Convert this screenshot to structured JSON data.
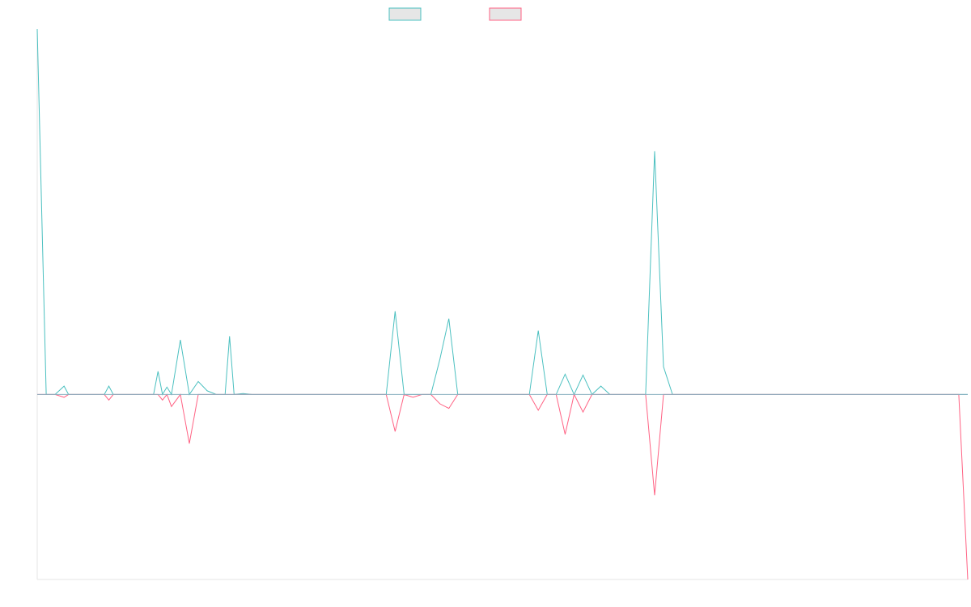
{
  "chart_data": {
    "type": "line",
    "title": "",
    "xlabel": "",
    "ylabel": "",
    "grid": false,
    "legend_position": "top-center",
    "x": [
      0,
      2,
      4,
      6,
      7,
      9,
      11,
      12,
      13,
      14,
      15,
      16,
      17,
      18,
      19,
      20,
      21,
      22,
      24,
      26,
      27,
      28,
      29,
      30,
      32,
      34,
      36,
      38,
      40,
      42,
      43,
      44,
      46,
      48,
      50,
      52,
      54,
      56,
      58,
      60,
      62,
      64,
      66,
      68,
      70,
      72,
      74,
      76,
      78,
      80,
      82,
      84,
      86,
      88,
      90,
      92,
      94,
      96,
      98,
      100,
      102,
      104,
      106,
      108,
      110,
      112,
      114,
      116,
      118,
      120,
      122,
      124,
      126,
      128,
      130,
      132,
      134,
      136,
      138,
      140,
      142,
      144,
      146,
      148,
      150,
      152,
      154,
      156,
      158,
      160,
      162,
      164,
      166,
      168,
      170,
      172,
      174,
      176,
      178,
      180,
      182,
      184,
      186,
      188,
      190,
      192,
      194,
      196,
      198,
      200,
      202,
      204,
      206,
      208
    ],
    "series": [
      {
        "color": "#4bc0c0",
        "fill": "rgba(0,0,0,0.10)",
        "values": [
          395,
          0,
          0,
          9,
          0,
          0,
          0,
          0,
          0,
          0,
          0,
          9,
          0,
          0,
          0,
          0,
          0,
          0,
          0,
          0,
          25,
          0,
          8,
          0,
          59,
          0,
          14,
          4,
          0,
          0,
          63,
          0,
          1,
          0,
          0,
          0,
          0,
          0,
          0,
          0,
          0,
          0,
          0,
          0,
          0,
          0,
          0,
          0,
          0,
          90,
          0,
          0,
          0,
          0,
          38,
          82,
          0,
          0,
          0,
          0,
          0,
          0,
          0,
          0,
          0,
          69,
          0,
          0,
          22,
          0,
          21,
          0,
          9,
          0,
          0,
          0,
          0,
          0,
          263,
          30,
          0,
          0,
          0,
          0,
          0,
          0,
          0,
          0,
          0,
          0,
          0,
          0,
          0,
          0,
          0,
          0,
          0,
          0,
          0,
          0,
          0,
          0,
          0,
          0,
          0,
          0,
          0,
          0,
          0,
          0,
          0,
          0,
          0,
          0
        ]
      },
      {
        "color": "#ff6384",
        "fill": "rgba(0,0,0,0.10)",
        "values": [
          0,
          0,
          0,
          -3,
          0,
          0,
          0,
          0,
          0,
          0,
          0,
          -6,
          0,
          0,
          0,
          0,
          0,
          0,
          0,
          0,
          0,
          -6,
          0,
          -13,
          0,
          -53,
          0,
          0,
          0,
          0,
          0,
          0,
          0,
          0,
          0,
          0,
          0,
          0,
          0,
          0,
          0,
          0,
          0,
          0,
          0,
          0,
          0,
          0,
          0,
          -40,
          0,
          -3,
          0,
          0,
          -10,
          -15,
          0,
          0,
          0,
          0,
          0,
          0,
          0,
          0,
          0,
          -17,
          0,
          0,
          -43,
          0,
          -19,
          0,
          0,
          0,
          0,
          0,
          0,
          0,
          -109,
          0,
          0,
          0,
          0,
          0,
          0,
          0,
          0,
          0,
          0,
          0,
          0,
          0,
          0,
          0,
          0,
          0,
          0,
          0,
          0,
          0,
          0,
          0,
          0,
          0,
          0,
          0,
          0,
          0,
          0,
          0,
          0,
          0,
          0,
          -200
        ]
      }
    ],
    "xlim": [
      0,
      208
    ],
    "ylim": [
      -200,
      395
    ]
  }
}
